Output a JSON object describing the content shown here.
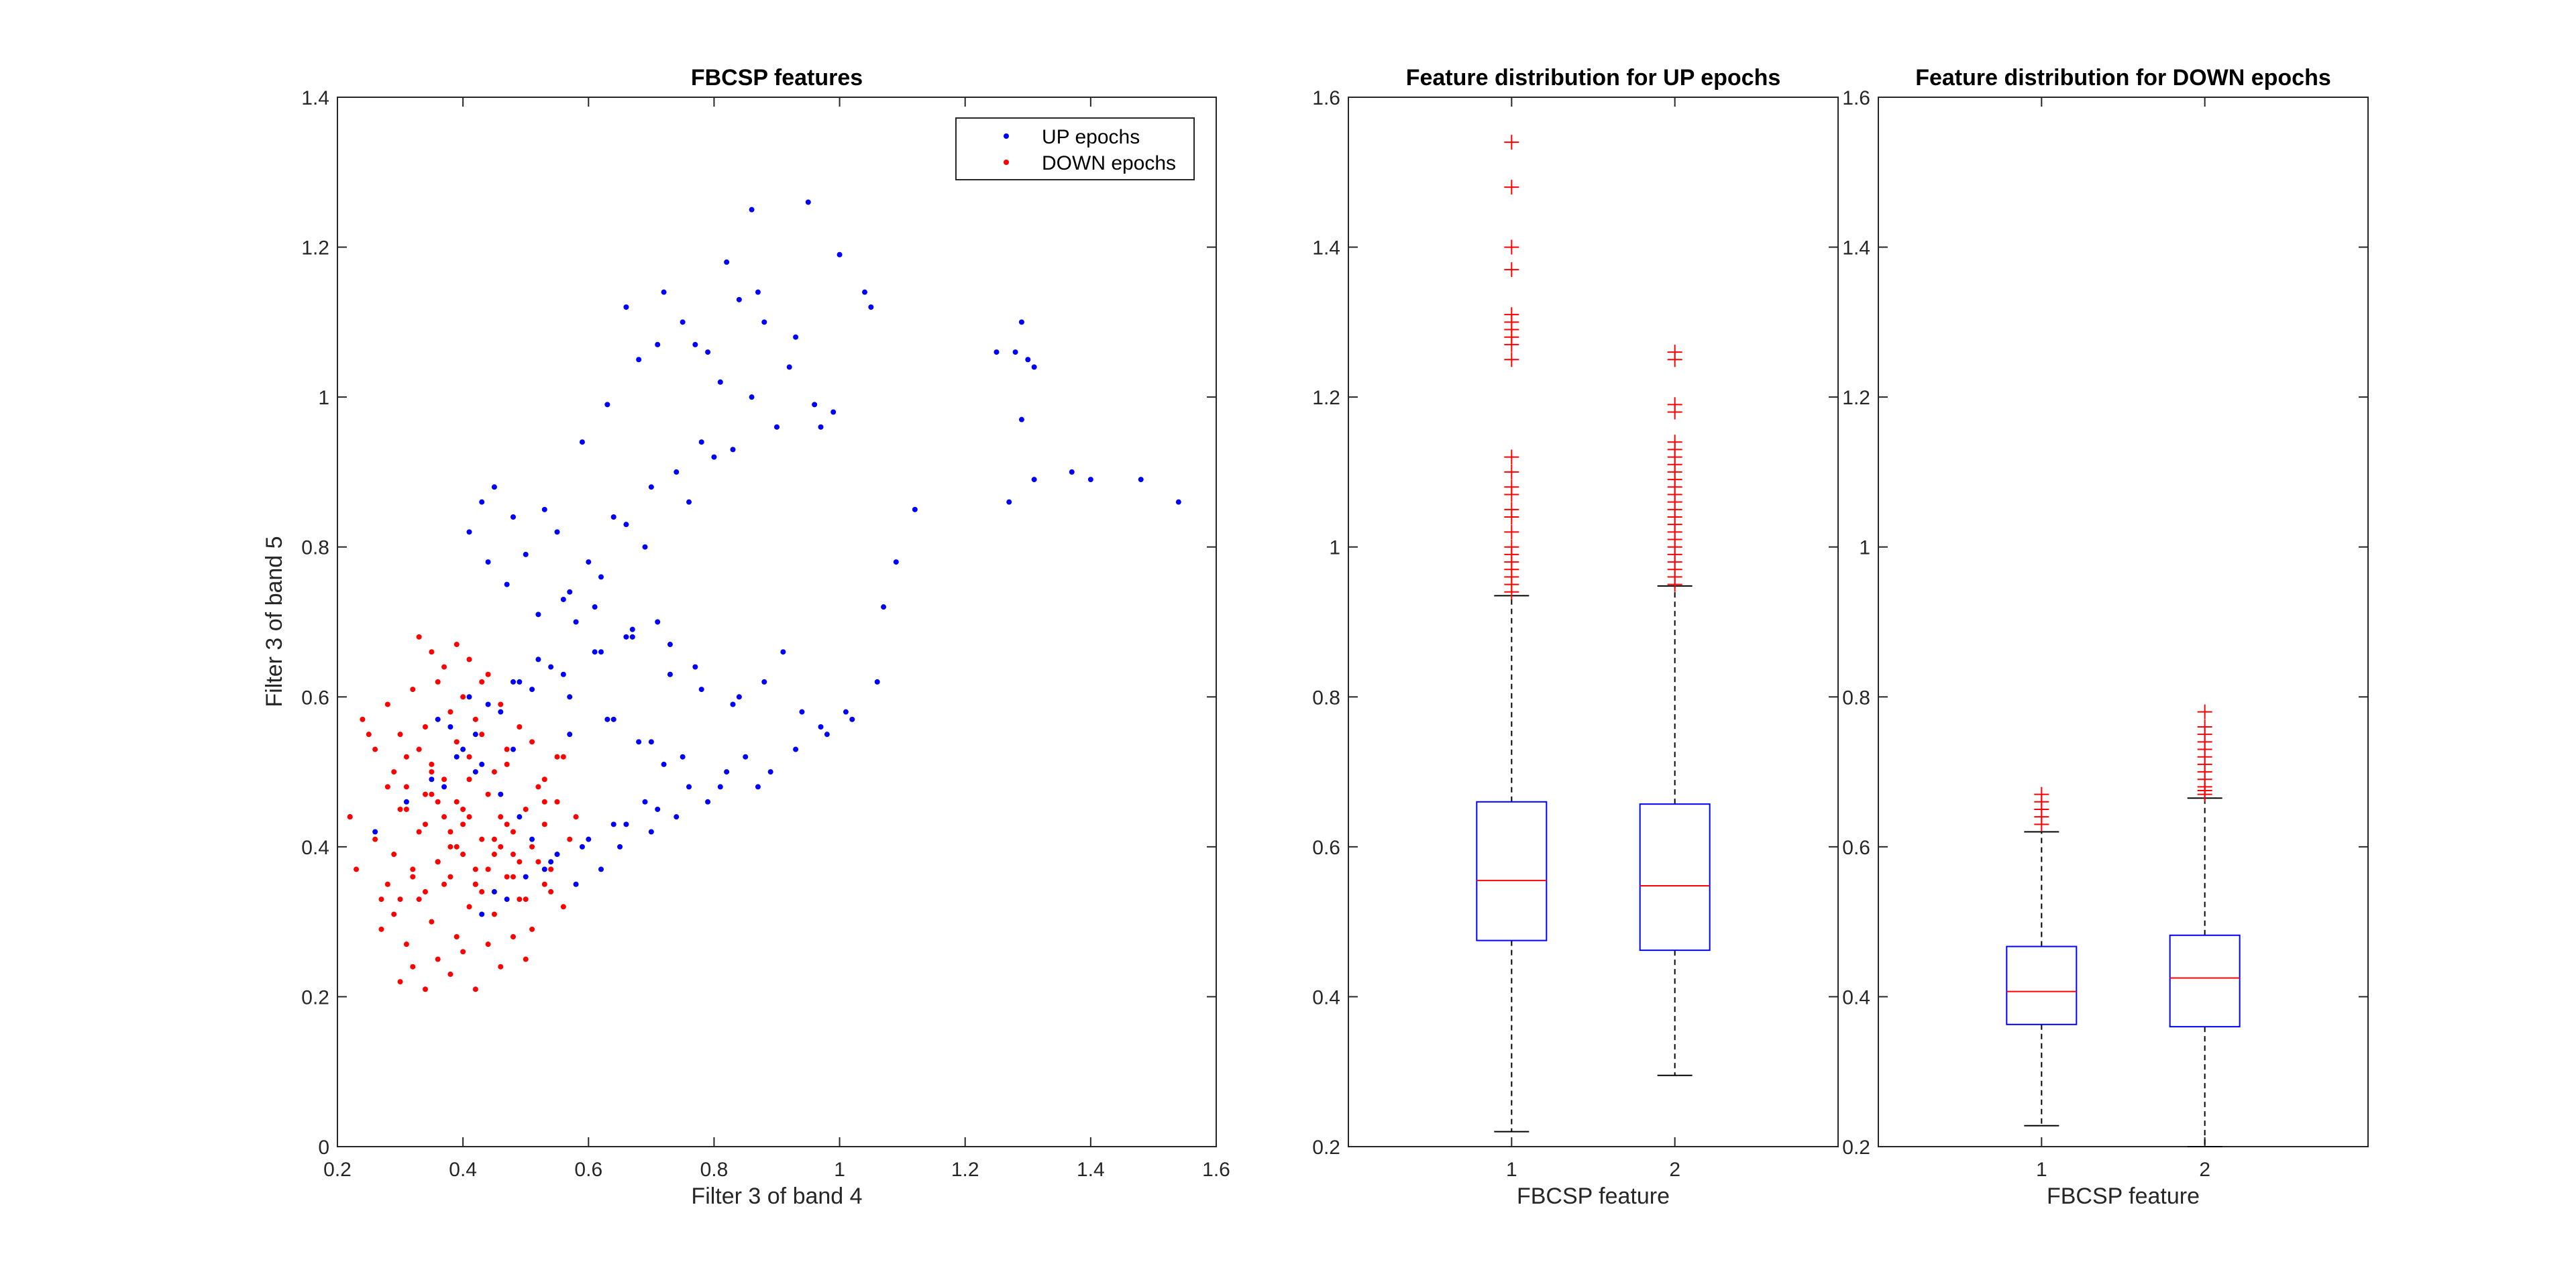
{
  "chart_data": [
    {
      "type": "scatter",
      "title": "FBCSP features",
      "xlabel": "Filter 3 of band 4",
      "ylabel": "Filter 3 of band 5",
      "xlim": [
        0.2,
        1.6
      ],
      "ylim": [
        0,
        1.4
      ],
      "xticks": [
        "0.2",
        "0.4",
        "0.6",
        "0.8",
        "1",
        "1.2",
        "1.4",
        "1.6"
      ],
      "yticks": [
        "0",
        "0.2",
        "0.4",
        "0.6",
        "0.8",
        "1",
        "1.2",
        "1.4"
      ],
      "grid": false,
      "legend_position": "top-right",
      "series": [
        {
          "name": "UP epochs",
          "color": "#0000ff",
          "x": [
            0.95,
            0.86,
            1.0,
            1.04,
            0.82,
            0.84,
            0.87,
            1.05,
            1.29,
            1.25,
            1.28,
            1.3,
            1.31,
            1.27,
            1.29,
            1.31,
            1.37,
            1.4,
            1.48,
            1.54,
            1.12,
            1.09,
            1.07,
            1.06,
            1.02,
            0.97,
            0.93,
            0.88,
            0.66,
            0.72,
            0.75,
            0.77,
            0.79,
            0.81,
            0.68,
            0.71,
            0.59,
            0.63,
            0.92,
            0.96,
            0.99,
            0.86,
            0.9,
            0.83,
            0.7,
            0.74,
            0.78,
            0.8,
            0.76,
            0.64,
            0.66,
            0.69,
            0.62,
            0.6,
            0.57,
            0.55,
            0.53,
            0.5,
            0.48,
            0.45,
            0.43,
            0.41,
            0.44,
            0.47,
            0.52,
            0.56,
            0.58,
            0.61,
            0.67,
            0.73,
            0.77,
            0.84,
            0.88,
            0.91,
            0.94,
            0.98,
            0.85,
            0.89,
            0.81,
            0.79,
            0.74,
            0.7,
            0.65,
            0.62,
            0.58,
            0.54,
            0.51,
            0.49,
            0.46,
            0.42,
            0.4,
            0.38,
            0.44,
            0.48,
            0.52,
            0.57,
            0.63,
            0.68,
            0.72,
            0.76,
            0.71,
            0.66,
            0.6,
            0.55,
            0.5,
            0.47,
            0.43,
            0.45,
            0.53,
            0.59,
            0.64,
            0.69,
            0.22,
            0.26,
            0.31,
            0.35,
            0.39,
            0.42,
            0.46,
            0.51,
            0.56,
            0.61,
            0.66,
            0.71,
            0.36,
            0.41,
            0.49,
            0.54,
            0.62,
            0.67,
            0.73,
            0.78,
            0.83,
            0.37,
            0.43,
            0.48,
            0.57,
            0.64,
            0.7,
            0.75,
            0.82,
            0.87,
            0.93,
            0.97,
            1.01
          ],
          "y": [
            1.26,
            1.25,
            1.19,
            1.14,
            1.18,
            1.13,
            1.14,
            1.12,
            1.1,
            1.06,
            1.06,
            1.05,
            0.89,
            0.86,
            0.97,
            1.04,
            0.9,
            0.89,
            0.89,
            0.86,
            0.85,
            0.78,
            0.72,
            0.62,
            0.57,
            0.96,
            1.08,
            1.1,
            1.12,
            1.14,
            1.1,
            1.07,
            1.06,
            1.02,
            1.05,
            1.07,
            0.94,
            0.99,
            1.04,
            0.99,
            0.98,
            1.0,
            0.96,
            0.93,
            0.88,
            0.9,
            0.94,
            0.92,
            0.86,
            0.84,
            0.83,
            0.8,
            0.76,
            0.78,
            0.74,
            0.82,
            0.85,
            0.79,
            0.84,
            0.88,
            0.86,
            0.82,
            0.78,
            0.75,
            0.71,
            0.73,
            0.7,
            0.72,
            0.69,
            0.67,
            0.64,
            0.6,
            0.62,
            0.66,
            0.58,
            0.55,
            0.52,
            0.5,
            0.48,
            0.46,
            0.44,
            0.42,
            0.4,
            0.37,
            0.35,
            0.38,
            0.41,
            0.44,
            0.47,
            0.5,
            0.53,
            0.56,
            0.59,
            0.62,
            0.65,
            0.6,
            0.57,
            0.54,
            0.51,
            0.48,
            0.45,
            0.43,
            0.41,
            0.39,
            0.36,
            0.33,
            0.31,
            0.34,
            0.37,
            0.4,
            0.43,
            0.46,
            0.44,
            0.42,
            0.46,
            0.49,
            0.52,
            0.55,
            0.58,
            0.61,
            0.63,
            0.66,
            0.68,
            0.7,
            0.57,
            0.6,
            0.62,
            0.64,
            0.66,
            0.68,
            0.63,
            0.61,
            0.59,
            0.48,
            0.51,
            0.53,
            0.55,
            0.57,
            0.54,
            0.52,
            0.5,
            0.48,
            0.53,
            0.56,
            0.58
          ]
        },
        {
          "name": "DOWN epochs",
          "color": "#ff0000",
          "x": [
            0.22,
            0.23,
            0.25,
            0.26,
            0.27,
            0.28,
            0.29,
            0.3,
            0.31,
            0.32,
            0.33,
            0.34,
            0.35,
            0.36,
            0.37,
            0.38,
            0.39,
            0.4,
            0.41,
            0.42,
            0.43,
            0.44,
            0.45,
            0.46,
            0.47,
            0.48,
            0.49,
            0.5,
            0.51,
            0.52,
            0.53,
            0.54,
            0.55,
            0.56,
            0.57,
            0.58,
            0.27,
            0.29,
            0.31,
            0.33,
            0.35,
            0.37,
            0.39,
            0.41,
            0.43,
            0.45,
            0.47,
            0.49,
            0.51,
            0.53,
            0.3,
            0.32,
            0.34,
            0.36,
            0.38,
            0.4,
            0.42,
            0.44,
            0.46,
            0.48,
            0.5,
            0.24,
            0.26,
            0.28,
            0.3,
            0.32,
            0.34,
            0.36,
            0.38,
            0.4,
            0.42,
            0.44,
            0.46,
            0.33,
            0.35,
            0.37,
            0.39,
            0.41,
            0.43,
            0.29,
            0.31,
            0.33,
            0.35,
            0.37,
            0.39,
            0.41,
            0.43,
            0.45,
            0.47,
            0.49,
            0.51,
            0.53,
            0.55,
            0.34,
            0.36,
            0.38,
            0.4,
            0.36,
            0.39,
            0.42,
            0.45,
            0.48,
            0.28,
            0.3,
            0.32,
            0.34,
            0.36,
            0.38,
            0.4,
            0.42,
            0.44,
            0.46,
            0.48,
            0.5,
            0.52,
            0.54,
            0.56,
            0.31,
            0.35,
            0.41,
            0.47,
            0.53
          ],
          "y": [
            0.44,
            0.37,
            0.55,
            0.41,
            0.33,
            0.48,
            0.39,
            0.45,
            0.52,
            0.36,
            0.42,
            0.47,
            0.5,
            0.38,
            0.44,
            0.4,
            0.46,
            0.43,
            0.49,
            0.35,
            0.41,
            0.47,
            0.39,
            0.44,
            0.51,
            0.42,
            0.38,
            0.45,
            0.4,
            0.48,
            0.43,
            0.37,
            0.46,
            0.52,
            0.41,
            0.44,
            0.29,
            0.31,
            0.27,
            0.33,
            0.3,
            0.35,
            0.28,
            0.32,
            0.34,
            0.31,
            0.36,
            0.33,
            0.29,
            0.35,
            0.22,
            0.24,
            0.21,
            0.25,
            0.23,
            0.26,
            0.21,
            0.27,
            0.24,
            0.28,
            0.25,
            0.57,
            0.53,
            0.59,
            0.55,
            0.61,
            0.56,
            0.62,
            0.58,
            0.6,
            0.57,
            0.63,
            0.59,
            0.68,
            0.66,
            0.64,
            0.67,
            0.65,
            0.62,
            0.5,
            0.48,
            0.53,
            0.51,
            0.49,
            0.54,
            0.52,
            0.55,
            0.5,
            0.53,
            0.56,
            0.54,
            0.49,
            0.52,
            0.43,
            0.46,
            0.42,
            0.45,
            0.38,
            0.4,
            0.37,
            0.41,
            0.39,
            0.35,
            0.33,
            0.37,
            0.34,
            0.38,
            0.36,
            0.39,
            0.35,
            0.37,
            0.4,
            0.36,
            0.33,
            0.38,
            0.34,
            0.32,
            0.45,
            0.47,
            0.44,
            0.43,
            0.46
          ]
        }
      ]
    },
    {
      "type": "box",
      "title": "Feature distribution for UP epochs",
      "xlabel": "FBCSP feature",
      "ylabel": "",
      "ylim": [
        0.2,
        1.6
      ],
      "categories": [
        "1",
        "2"
      ],
      "yticks": [
        "0.2",
        "0.4",
        "0.6",
        "0.8",
        "1",
        "1.2",
        "1.4",
        "1.6"
      ],
      "boxes": [
        {
          "lower_whisker": 0.22,
          "q1": 0.475,
          "median": 0.555,
          "q3": 0.66,
          "upper_whisker": 0.935,
          "outliers": [
            1.54,
            1.48,
            1.4,
            1.37,
            1.31,
            1.3,
            1.29,
            1.28,
            1.27,
            1.25,
            1.12,
            1.1,
            1.08,
            1.07,
            1.05,
            1.04,
            1.02,
            1.0,
            0.99,
            0.98,
            0.97,
            0.96,
            0.95,
            0.94
          ]
        },
        {
          "lower_whisker": 0.295,
          "q1": 0.462,
          "median": 0.548,
          "q3": 0.657,
          "upper_whisker": 0.948,
          "outliers": [
            1.26,
            1.25,
            1.19,
            1.18,
            1.14,
            1.13,
            1.12,
            1.11,
            1.1,
            1.09,
            1.08,
            1.07,
            1.06,
            1.05,
            1.04,
            1.03,
            1.02,
            1.01,
            1.0,
            0.99,
            0.98,
            0.97,
            0.96,
            0.95
          ]
        }
      ]
    },
    {
      "type": "box",
      "title": "Feature distribution for DOWN epochs",
      "xlabel": "FBCSP feature",
      "ylabel": "",
      "ylim": [
        0.2,
        1.6
      ],
      "categories": [
        "1",
        "2"
      ],
      "yticks": [
        "0.2",
        "0.4",
        "0.6",
        "0.8",
        "1",
        "1.2",
        "1.4",
        "1.6"
      ],
      "boxes": [
        {
          "lower_whisker": 0.228,
          "q1": 0.363,
          "median": 0.407,
          "q3": 0.467,
          "upper_whisker": 0.62,
          "outliers": [
            0.67,
            0.66,
            0.65,
            0.64,
            0.63
          ]
        },
        {
          "lower_whisker": 0.2,
          "q1": 0.36,
          "median": 0.425,
          "q3": 0.482,
          "upper_whisker": 0.665,
          "outliers": [
            0.78,
            0.76,
            0.75,
            0.74,
            0.73,
            0.72,
            0.71,
            0.7,
            0.69,
            0.68,
            0.675,
            0.67
          ]
        }
      ]
    }
  ]
}
